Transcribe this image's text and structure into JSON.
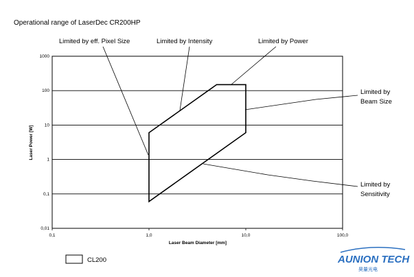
{
  "chart_data": {
    "type": "line",
    "title": "Operational range of LaserDec CR200HP",
    "xlabel": "Laser Beam Diameter [mm]",
    "ylabel": "Laser Power [W]",
    "xscale": "log",
    "yscale": "log",
    "xlim": [
      0.1,
      100
    ],
    "ylim": [
      0.01,
      1000
    ],
    "x_tick_labels": [
      "0,1",
      "1,0",
      "10,0",
      "100,0"
    ],
    "y_tick_labels": [
      "1000",
      "100",
      "10",
      "1",
      "0,1",
      "0,01"
    ],
    "grid": "horizontal",
    "series": [
      {
        "name": "CL200",
        "x": [
          1.0,
          1.0,
          5.0,
          10.0,
          10.0,
          1.0
        ],
        "y": [
          0.06,
          6,
          150,
          150,
          6,
          0.06
        ]
      }
    ],
    "legend": "bottom-left",
    "annotations": [
      {
        "lines": [
          "Limited by eff. Pixel Size"
        ]
      },
      {
        "lines": [
          "Limited by Intensity"
        ]
      },
      {
        "lines": [
          "Limited by Power"
        ]
      },
      {
        "lines": [
          "Limited by",
          "Beam Size"
        ]
      },
      {
        "lines": [
          "Limited by",
          "Sensitivity"
        ]
      }
    ]
  },
  "branding": {
    "logo_text": "AUNION TECH",
    "logo_subtext": "昊量光电"
  }
}
